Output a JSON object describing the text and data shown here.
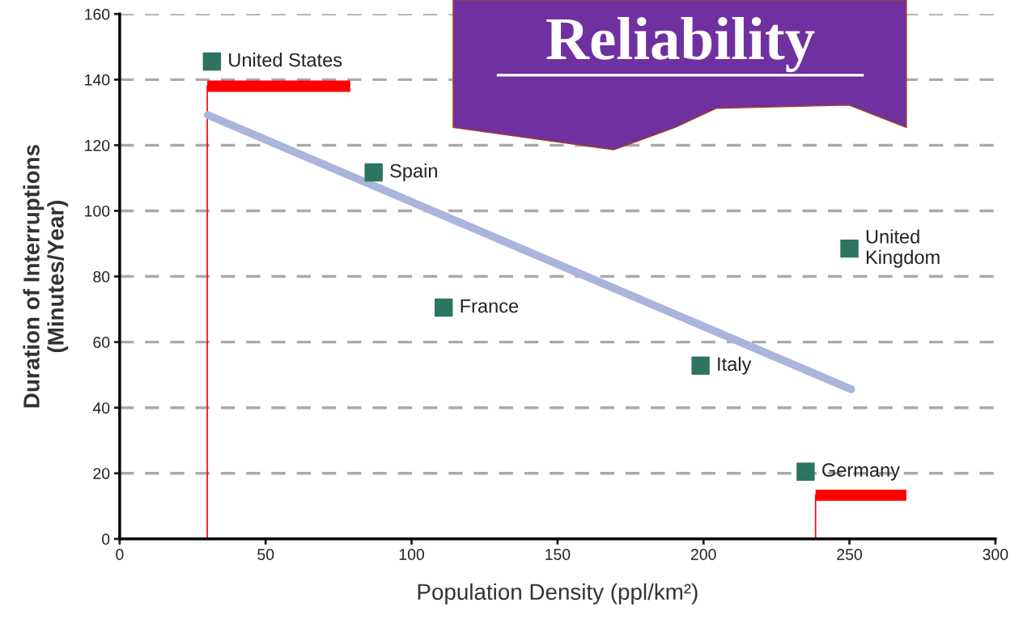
{
  "chart_data": {
    "type": "scatter",
    "title": "Reliability",
    "xlabel": "Population Density (ppl/km²)",
    "ylabel": "Duration of Interruptions\n(Minutes/Year)",
    "series": [
      {
        "color": "#2e7561",
        "marker": "square",
        "x": [
          31.6,
          87,
          111,
          199,
          250,
          235
        ],
        "values": [
          145.5,
          111.7,
          70.5,
          52.8,
          88.5,
          20.5
        ]
      },
      {
        "type": "line",
        "color": "#a9b5dc",
        "marker": "none",
        "line_style": "solid",
        "x": [
          30.2,
          250.6
        ],
        "values": [
          129.2,
          45.6
        ]
      }
    ],
    "annotations": [
      {
        "text": "United States",
        "x": 31.6,
        "y": 145.5
      },
      {
        "text": "Spain",
        "x": 87,
        "y": 111.7
      },
      {
        "text": "France",
        "x": 111,
        "y": 70.5
      },
      {
        "text": "Italy",
        "x": 199,
        "y": 52.8
      },
      {
        "text": "United\nKingdom",
        "x": 250,
        "y": 88.5
      },
      {
        "text": "Germany",
        "x": 235,
        "y": 20.5
      }
    ],
    "xlim": [
      0,
      300
    ],
    "xticks": [
      0,
      50,
      100,
      150,
      200,
      250,
      300
    ],
    "ylim": [
      0,
      160
    ],
    "yticks": [
      0,
      20,
      40,
      60,
      80,
      100,
      120,
      140,
      160
    ],
    "ref_lines": [
      {
        "axis": "x",
        "value": 30,
        "label": null,
        "color": "#ff0000"
      },
      {
        "axis": "x",
        "value": 238.4,
        "label": null,
        "color": "#ff0000"
      }
    ],
    "grid": "y"
  }
}
